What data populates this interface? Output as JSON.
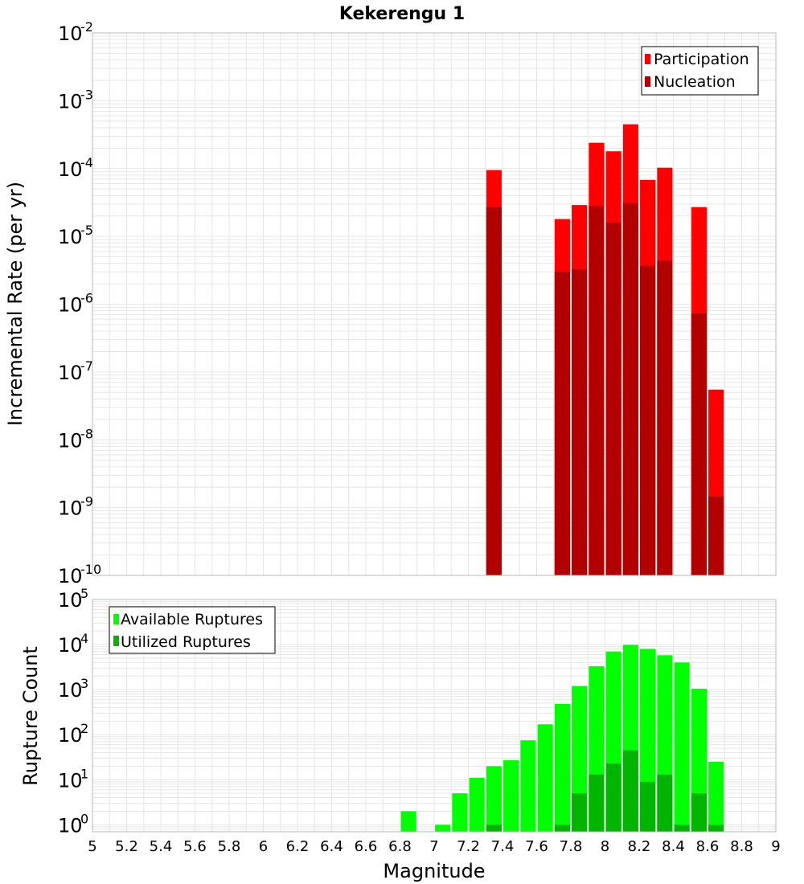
{
  "chart_data": [
    {
      "type": "bar",
      "title": "Kekerengu 1",
      "ylabel": "Incremental Rate (per yr)",
      "yscale": "log",
      "ylim": [
        1e-10,
        0.01
      ],
      "xlim": [
        5,
        9
      ],
      "y_tick_exponents": [
        "-2",
        "-3",
        "-4",
        "-5",
        "-6",
        "-7",
        "-8",
        "-9",
        "-10"
      ],
      "y_tick_base": "10",
      "legend_position": "top-right",
      "bar_width": 0.09,
      "x": [
        7.35,
        7.75,
        7.85,
        7.95,
        8.05,
        8.15,
        8.25,
        8.35,
        8.55,
        8.65
      ],
      "series": [
        {
          "name": "Participation",
          "color": "#ff0000",
          "values": [
            9.5e-05,
            1.8e-05,
            2.9e-05,
            0.00024,
            0.00018,
            0.00045,
            6.8e-05,
            0.000103,
            2.7e-05,
            5.5e-08
          ]
        },
        {
          "name": "Nucleation",
          "color": "#b20000",
          "values": [
            2.7e-05,
            3e-06,
            3.3e-06,
            2.8e-05,
            1.6e-05,
            3.1e-05,
            3.7e-06,
            4.4e-06,
            7.3e-07,
            1.45e-09
          ]
        }
      ]
    },
    {
      "type": "bar",
      "ylabel": "Rupture Count",
      "xlabel": "Magnitude",
      "yscale": "log",
      "ylim": [
        0.7,
        100000
      ],
      "xlim": [
        5,
        9
      ],
      "y_ticks": [
        1,
        10,
        100,
        1000,
        10000,
        100000
      ],
      "y_tick_exponents": [
        "0",
        "1",
        "2",
        "3",
        "4",
        "5"
      ],
      "y_tick_base": "10",
      "x_ticks": [
        "5",
        "5.2",
        "5.4",
        "5.6",
        "5.8",
        "6",
        "6.2",
        "6.4",
        "6.6",
        "6.8",
        "7",
        "7.2",
        "7.4",
        "7.6",
        "7.8",
        "8",
        "8.2",
        "8.4",
        "8.6",
        "8.8",
        "9"
      ],
      "legend_position": "top-left",
      "bar_width": 0.09,
      "x": [
        6.85,
        7.05,
        7.15,
        7.25,
        7.35,
        7.45,
        7.55,
        7.65,
        7.75,
        7.85,
        7.95,
        8.05,
        8.15,
        8.25,
        8.35,
        8.45,
        8.55,
        8.65
      ],
      "series": [
        {
          "name": "Available Ruptures",
          "color": "#00ff00",
          "values": [
            2,
            1,
            5,
            11,
            20,
            27,
            75,
            170,
            480,
            1200,
            3300,
            7000,
            9800,
            8000,
            5800,
            4000,
            1050,
            25
          ]
        },
        {
          "name": "Utilized Ruptures",
          "color": "#00b400",
          "values": [
            null,
            null,
            null,
            null,
            1,
            null,
            null,
            null,
            1,
            5,
            13,
            23,
            45,
            9,
            13,
            1,
            5,
            1
          ]
        }
      ]
    }
  ]
}
